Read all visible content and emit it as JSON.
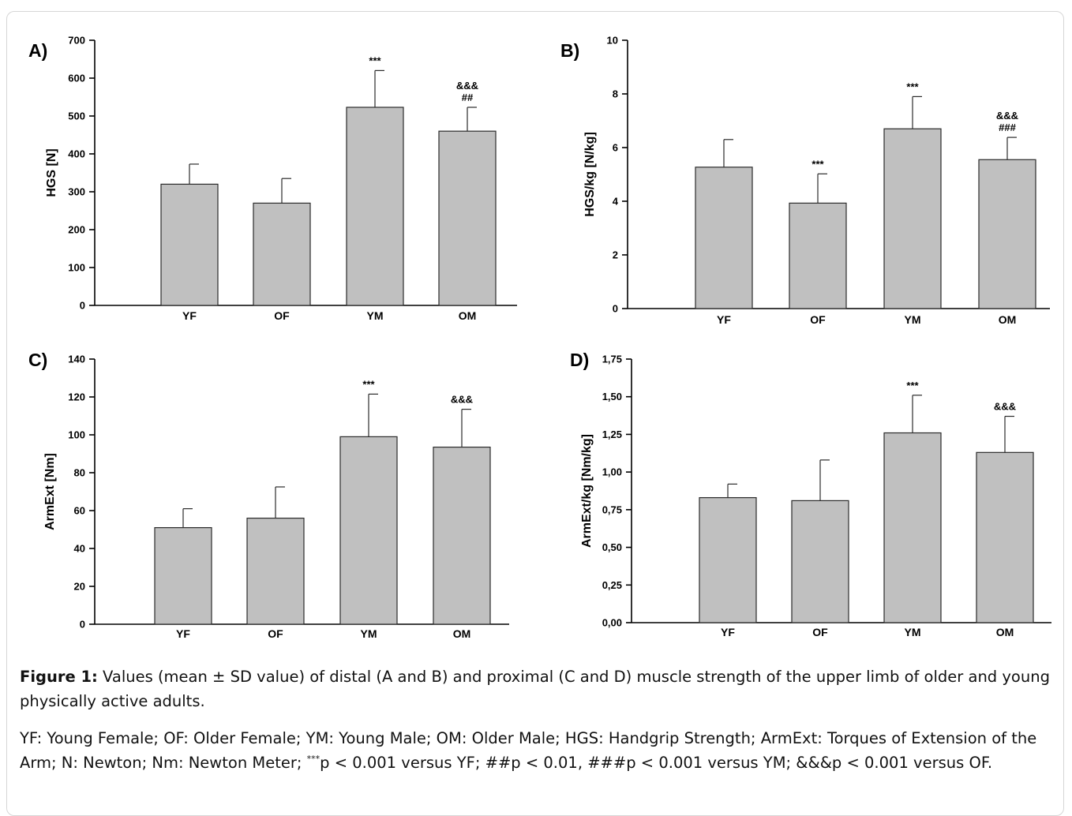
{
  "figure": {
    "caption_label": "Figure 1:",
    "caption_text": " Values (mean ± SD value) of distal (A and B) and proximal (C and D) muscle strength of the upper limb of older and young physically active adults.",
    "note": {
      "before_sup": "YF: Young Female; OF: Older Female; YM: Young Male; OM: Older Male; HGS: Handgrip Strength; ArmExt: Torques of Extension of the Arm; N: Newton; Nm: Newton Meter; ",
      "sup": "***",
      "after_sup": "p < 0.001 versus YF; ##p < 0.01, ###p < 0.001 versus YM; &&&p < 0.001 versus OF."
    }
  },
  "colors": {
    "bar_fill": "#c0c0c0",
    "bar_stroke": "#2b2b2b",
    "axis": "#000000"
  },
  "chart_data": [
    {
      "panel": "A)",
      "type": "bar",
      "ylabel": "HGS [N]",
      "ylim": [
        0,
        700
      ],
      "yticks": [
        "0",
        "100",
        "200",
        "300",
        "400",
        "500",
        "600",
        "700"
      ],
      "categories": [
        "YF",
        "OF",
        "YM",
        "OM"
      ],
      "values": [
        320,
        270,
        523,
        460
      ],
      "errors": [
        53,
        65,
        97,
        63
      ],
      "annotations": [
        [],
        [],
        [
          "***"
        ],
        [
          "&&&",
          "##"
        ]
      ],
      "grid": false,
      "legend": "none"
    },
    {
      "panel": "B)",
      "type": "bar",
      "ylabel": "HGS/kg [N/kg]",
      "ylim": [
        0,
        10
      ],
      "yticks": [
        "0",
        "2",
        "4",
        "6",
        "8",
        "10"
      ],
      "categories": [
        "YF",
        "OF",
        "YM",
        "OM"
      ],
      "values": [
        5.27,
        3.93,
        6.7,
        5.55
      ],
      "errors": [
        1.03,
        1.09,
        1.2,
        0.83
      ],
      "annotations": [
        [],
        [
          "***"
        ],
        [
          "***"
        ],
        [
          "&&&",
          "###"
        ]
      ],
      "grid": false,
      "legend": "none"
    },
    {
      "panel": "C)",
      "type": "bar",
      "ylabel": "ArmExt [Nm]",
      "ylim": [
        0,
        140
      ],
      "yticks": [
        "0",
        "20",
        "40",
        "60",
        "80",
        "100",
        "120",
        "140"
      ],
      "categories": [
        "YF",
        "OF",
        "YM",
        "OM"
      ],
      "values": [
        51,
        56,
        99,
        93.5
      ],
      "errors": [
        10,
        16.5,
        22.5,
        20
      ],
      "annotations": [
        [],
        [],
        [
          "***"
        ],
        [
          "&&&"
        ]
      ],
      "grid": false,
      "legend": "none"
    },
    {
      "panel": "D)",
      "type": "bar",
      "ylabel": "ArmExt/kg [Nm/kg]",
      "ylim": [
        0,
        1.75
      ],
      "yticks": [
        "0,00",
        "0,25",
        "0,50",
        "0,75",
        "1,00",
        "1,25",
        "1,50",
        "1,75"
      ],
      "categories": [
        "YF",
        "OF",
        "YM",
        "OM"
      ],
      "values": [
        0.83,
        0.81,
        1.26,
        1.13
      ],
      "errors": [
        0.09,
        0.27,
        0.25,
        0.24
      ],
      "annotations": [
        [],
        [],
        [
          "***"
        ],
        [
          "&&&"
        ]
      ],
      "grid": false,
      "legend": "none"
    }
  ]
}
